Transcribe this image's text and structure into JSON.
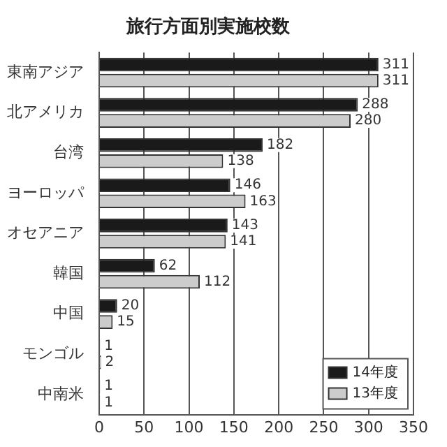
{
  "chart_data": {
    "type": "bar",
    "orientation": "horizontal",
    "title": "旅行方面別実施校数",
    "categories": [
      "東南アジア",
      "北アメリカ",
      "台湾",
      "ヨーロッパ",
      "オセアニア",
      "韓国",
      "中国",
      "モンゴル",
      "中南米"
    ],
    "series": [
      {
        "name": "14年度",
        "color": "#1a1a1a",
        "values": [
          311,
          288,
          182,
          146,
          143,
          62,
          20,
          1,
          1
        ]
      },
      {
        "name": "13年度",
        "color": "#cccccc",
        "values": [
          311,
          280,
          138,
          163,
          141,
          112,
          15,
          2,
          1
        ]
      }
    ],
    "xlim": [
      0,
      350
    ],
    "xticks": [
      0,
      50,
      100,
      150,
      200,
      250,
      300,
      350
    ],
    "grid": "x",
    "legend": "bottom right",
    "data_labels": true
  }
}
